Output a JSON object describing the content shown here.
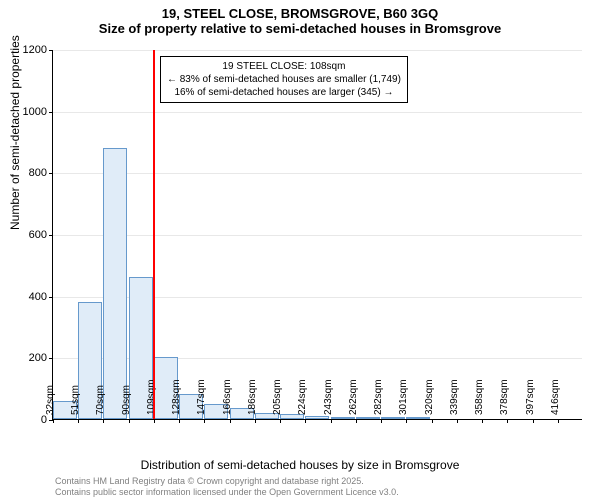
{
  "header": {
    "line1": "19, STEEL CLOSE, BROMSGROVE, B60 3GQ",
    "line2": "Size of property relative to semi-detached houses in Bromsgrove"
  },
  "chart": {
    "type": "histogram",
    "ylabel": "Number of semi-detached properties",
    "xlabel": "Distribution of semi-detached houses by size in Bromsgrove",
    "ylim": [
      0,
      1200
    ],
    "ytick_step": 200,
    "yticks": [
      0,
      200,
      400,
      600,
      800,
      1000,
      1200
    ],
    "xtick_labels": [
      "32sqm",
      "51sqm",
      "70sqm",
      "90sqm",
      "109sqm",
      "128sqm",
      "147sqm",
      "166sqm",
      "186sqm",
      "205sqm",
      "224sqm",
      "243sqm",
      "262sqm",
      "282sqm",
      "301sqm",
      "320sqm",
      "339sqm",
      "358sqm",
      "378sqm",
      "397sqm",
      "416sqm"
    ],
    "bars": [
      60,
      380,
      880,
      460,
      200,
      80,
      50,
      35,
      20,
      15,
      10,
      8,
      6,
      4,
      2,
      0,
      0,
      1,
      0,
      0,
      0
    ],
    "bar_fill": "#e0ecf8",
    "bar_stroke": "#6699cc",
    "grid_color": "#e8e8e8",
    "marker_color": "#ff0000",
    "marker_bar_index": 4,
    "annotation": {
      "title": "19 STEEL CLOSE: 108sqm",
      "line_smaller": "← 83% of semi-detached houses are smaller (1,749)",
      "line_larger": "16% of semi-detached houses are larger (345) →"
    },
    "title_fontsize": 13,
    "label_fontsize": 12,
    "tick_fontsize": 10
  },
  "footer": {
    "line1": "Contains HM Land Registry data © Crown copyright and database right 2025.",
    "line2": "Contains public sector information licensed under the Open Government Licence v3.0."
  }
}
